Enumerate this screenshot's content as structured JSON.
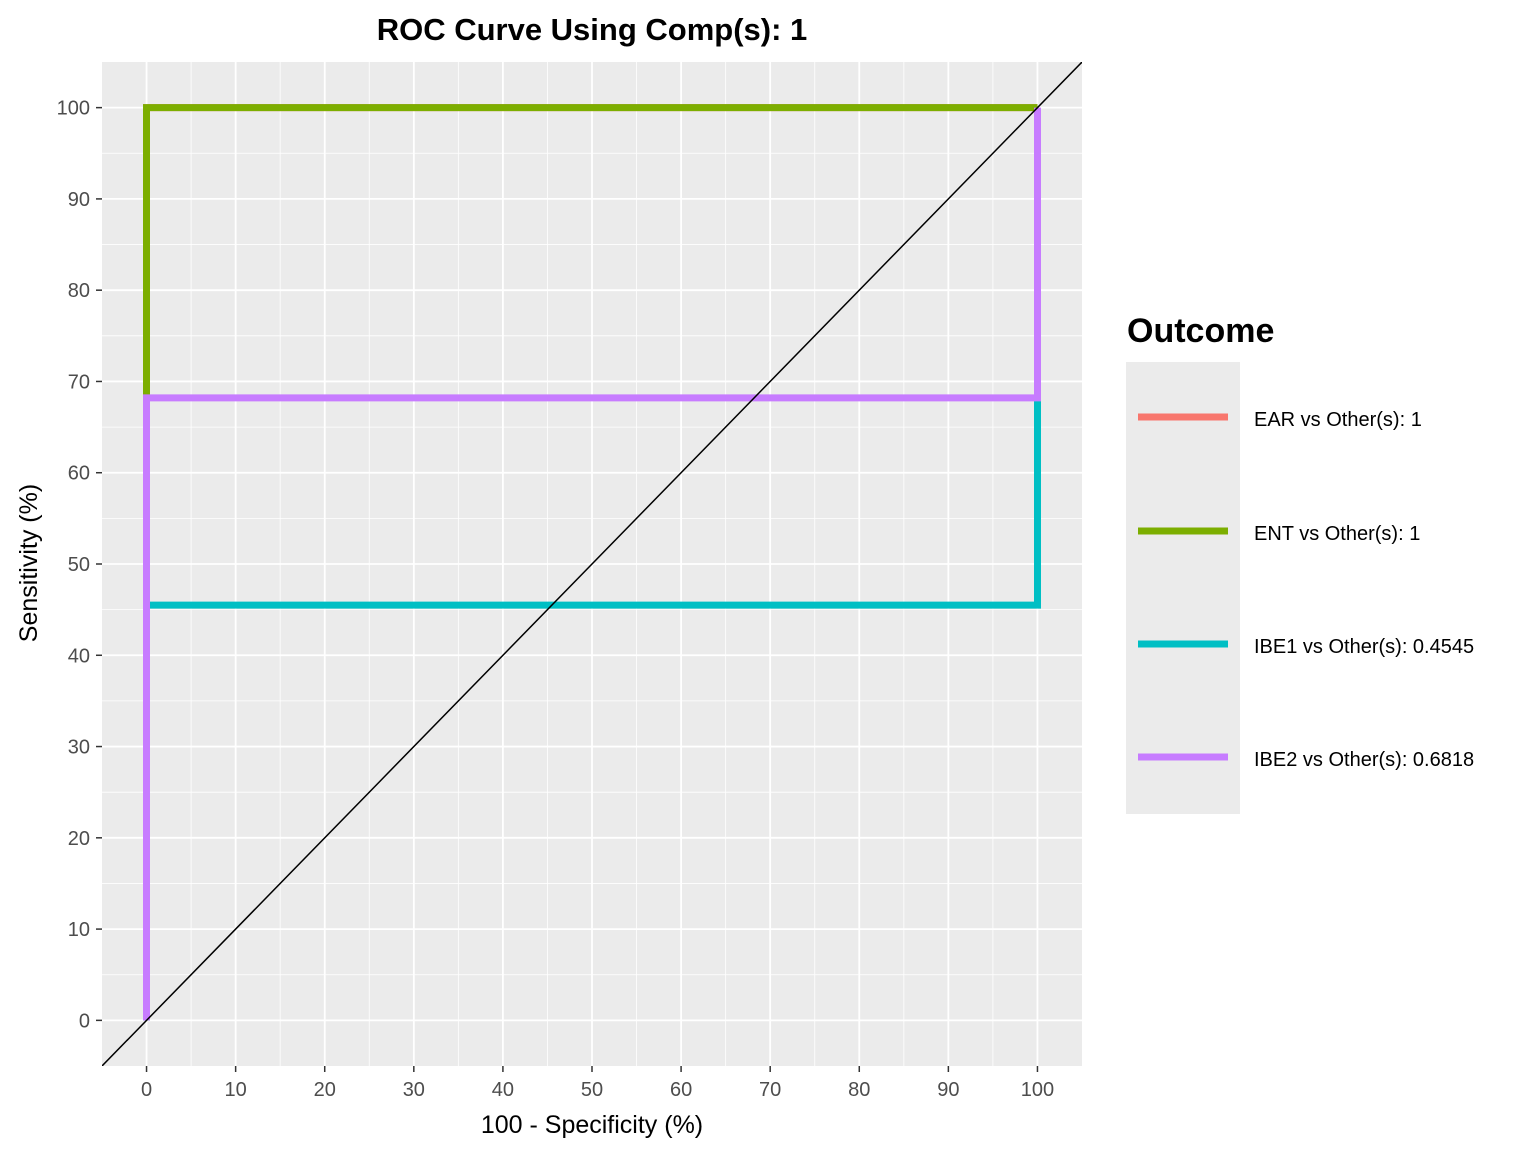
{
  "chart_data": {
    "type": "line",
    "title": "ROC Curve Using Comp(s): 1",
    "xlabel": "100 - Specificity (%)",
    "ylabel": "Sensitivity (%)",
    "xlim": [
      -5,
      105
    ],
    "ylim": [
      -5,
      105
    ],
    "xticks": [
      0,
      10,
      20,
      30,
      40,
      50,
      60,
      70,
      80,
      90,
      100
    ],
    "yticks": [
      0,
      10,
      20,
      30,
      40,
      50,
      60,
      70,
      80,
      90,
      100
    ],
    "grid": true,
    "legend": {
      "title": "Outcome",
      "position": "right"
    },
    "reference_line": {
      "x": [
        -5,
        105
      ],
      "y": [
        -5,
        105
      ],
      "color": "#000000"
    },
    "series": [
      {
        "name": "EAR vs Other(s): 1",
        "color": "#F8766D",
        "x": [
          0,
          0,
          100
        ],
        "y": [
          0,
          100,
          100
        ]
      },
      {
        "name": "ENT vs Other(s): 1",
        "color": "#7CAE00",
        "x": [
          0,
          0,
          100
        ],
        "y": [
          68.2,
          100,
          100
        ]
      },
      {
        "name": "IBE1 vs Other(s): 0.4545",
        "color": "#00BFC4",
        "x": [
          0,
          0,
          100,
          100
        ],
        "y": [
          0,
          45.5,
          45.5,
          68.2
        ]
      },
      {
        "name": "IBE2 vs Other(s): 0.6818",
        "color": "#C77CFF",
        "x": [
          0,
          0,
          100,
          100
        ],
        "y": [
          0,
          68.2,
          68.2,
          100
        ]
      }
    ]
  }
}
